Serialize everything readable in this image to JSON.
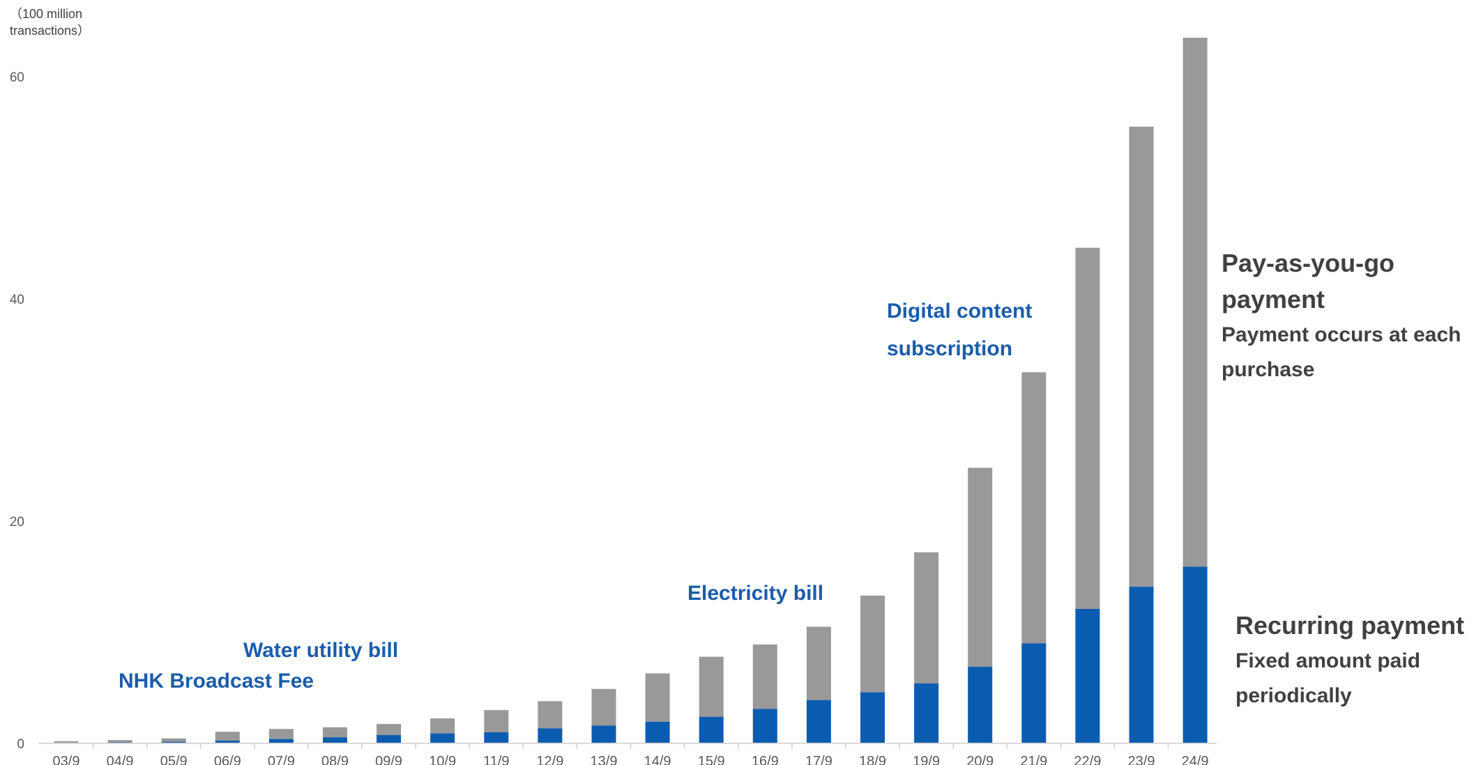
{
  "chart_data": {
    "type": "bar",
    "stacked": true,
    "unit_label": [
      "（100 million",
      "transactions）"
    ],
    "categories": [
      "03/9",
      "04/9",
      "05/9",
      "06/9",
      "07/9",
      "08/9",
      "09/9",
      "10/9",
      "11/9",
      "12/9",
      "13/9",
      "14/9",
      "15/9",
      "16/9",
      "17/9",
      "18/9",
      "19/9",
      "20/9",
      "21/9",
      "22/9",
      "23/9",
      "24/9"
    ],
    "series": [
      {
        "name": "Recurring payment",
        "color": "#0a5cb0",
        "values": [
          0.05,
          0.1,
          0.15,
          0.25,
          0.4,
          0.55,
          0.75,
          0.9,
          1.0,
          1.35,
          1.6,
          1.95,
          2.4,
          3.1,
          3.9,
          4.6,
          5.4,
          6.9,
          9.0,
          12.1,
          14.1,
          15.9
        ]
      },
      {
        "name": "Pay-as-you-go payment",
        "color": "#999999",
        "values": [
          0.15,
          0.2,
          0.3,
          0.8,
          0.9,
          0.9,
          1.0,
          1.35,
          2.0,
          2.45,
          3.3,
          4.35,
          5.4,
          5.8,
          6.6,
          8.7,
          11.8,
          17.9,
          24.4,
          32.5,
          41.4,
          47.6
        ]
      }
    ],
    "ylim": [
      0,
      63.6
    ],
    "yticks": [
      0,
      20,
      40,
      60
    ],
    "grid": false,
    "annotations": [
      {
        "text": "NHK Broadcast Fee",
        "color": "#1a5cab"
      },
      {
        "text": "Water utility bill",
        "color": "#1a5cab"
      },
      {
        "text": "Electricity bill",
        "color": "#1a5cab"
      },
      {
        "text": "Digital content subscription",
        "lines": [
          "Digital content",
          "subscription"
        ],
        "color": "#1a5cab"
      }
    ],
    "legend": {
      "placement": "right",
      "items": [
        {
          "title_lines": [
            "Pay-as-you-go",
            "payment"
          ],
          "desc_lines": [
            "Payment occurs at each",
            "purchase"
          ]
        },
        {
          "title_lines": [
            "Recurring payment"
          ],
          "desc_lines": [
            "Fixed amount paid",
            "periodically"
          ]
        }
      ]
    }
  }
}
